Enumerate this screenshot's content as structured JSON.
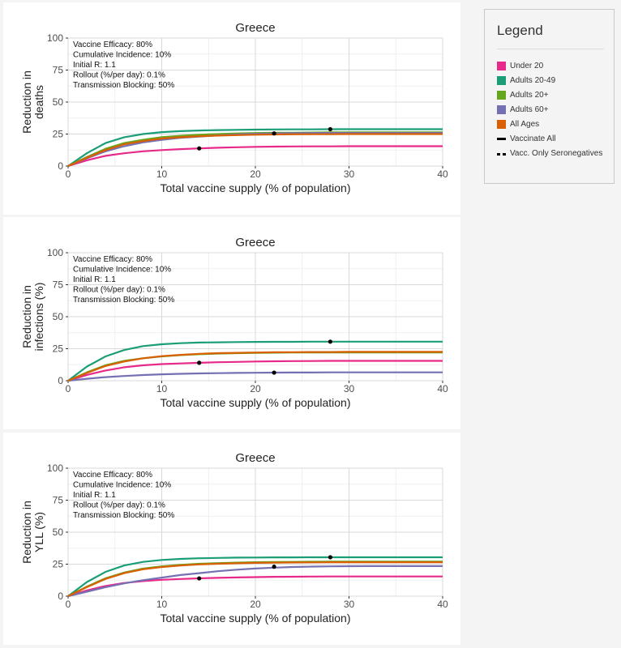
{
  "legend": {
    "title": "Legend",
    "items": [
      {
        "label": "Under 20",
        "color": "#e7298a",
        "kind": "swatch"
      },
      {
        "label": "Adults 20-49",
        "color": "#1b9e77",
        "kind": "swatch"
      },
      {
        "label": "Adults 20+",
        "color": "#66a61e",
        "kind": "swatch"
      },
      {
        "label": "Adults 60+",
        "color": "#7570b3",
        "kind": "swatch"
      },
      {
        "label": "All Ages",
        "color": "#d95f02",
        "kind": "swatch"
      },
      {
        "label": "Vaccinate All",
        "color": "#000000",
        "kind": "line"
      },
      {
        "label": "Vacc. Only Seronegatives",
        "color": "#000000",
        "kind": "dots"
      }
    ]
  },
  "chart_data": [
    {
      "type": "line",
      "title": "Greece",
      "xlabel": "Total vaccine supply (% of population)",
      "ylabel": [
        "Reduction in",
        "deaths"
      ],
      "xlim": [
        0,
        40
      ],
      "ylim": [
        0,
        100
      ],
      "x_ticks": [
        0,
        10,
        20,
        30,
        40
      ],
      "y_ticks": [
        0,
        25,
        50,
        75,
        100
      ],
      "annotations": [
        "Vaccine Efficacy: 80%",
        "Cumulative Incidence: 10%",
        "Initial R: 1.1",
        "Rollout (%/per day): 0.1%",
        "Transmission Blocking: 50%"
      ],
      "x": [
        0,
        2,
        4,
        6,
        8,
        10,
        12,
        14,
        16,
        18,
        20,
        22,
        24,
        26,
        28,
        30,
        32,
        34,
        36,
        38,
        40
      ],
      "series": [
        {
          "name": "Under 20",
          "color": "#e7298a",
          "values": [
            0,
            4.5,
            8,
            10,
            11.5,
            12.5,
            13.2,
            13.8,
            14.3,
            14.7,
            15,
            15.2,
            15.3,
            15.4,
            15.4,
            15.5,
            15.5,
            15.5,
            15.5,
            15.5,
            15.5
          ],
          "marker": [
            14,
            13.8
          ]
        },
        {
          "name": "Adults 20-49",
          "color": "#1b9e77",
          "values": [
            0,
            10,
            18,
            22.5,
            25,
            26.5,
            27.3,
            27.8,
            28.1,
            28.3,
            28.5,
            28.6,
            28.7,
            28.7,
            28.8,
            28.8,
            28.8,
            28.8,
            28.8,
            28.8,
            28.8
          ],
          "marker": [
            28,
            28.8
          ]
        },
        {
          "name": "Adults 20+",
          "color": "#66a61e",
          "values": [
            0,
            7,
            13.5,
            18,
            20.5,
            22.5,
            23.7,
            24.5,
            25,
            25.5,
            25.8,
            26,
            26.1,
            26.2,
            26.3,
            26.3,
            26.3,
            26.3,
            26.3,
            26.3,
            26.3
          ]
        },
        {
          "name": "Adults 60+",
          "color": "#7570b3",
          "values": [
            0,
            6,
            11.5,
            15.5,
            18.5,
            20.5,
            22,
            23,
            24,
            24.7,
            25.2,
            25.5,
            25.7,
            25.8,
            25.9,
            25.9,
            25.9,
            25.9,
            25.9,
            25.9,
            25.9
          ],
          "marker": [
            22,
            25.5
          ]
        },
        {
          "name": "All Ages",
          "color": "#d95f02",
          "values": [
            0,
            6.5,
            12.5,
            17,
            19.5,
            21.5,
            22.5,
            23.3,
            23.8,
            24.2,
            24.5,
            24.7,
            24.8,
            24.9,
            24.9,
            25,
            25,
            25,
            25,
            25,
            25
          ]
        }
      ]
    },
    {
      "type": "line",
      "title": "Greece",
      "xlabel": "Total vaccine supply (% of population)",
      "ylabel": [
        "Reduction in",
        "infections (%)"
      ],
      "xlim": [
        0,
        40
      ],
      "ylim": [
        0,
        100
      ],
      "x_ticks": [
        0,
        10,
        20,
        30,
        40
      ],
      "y_ticks": [
        0,
        25,
        50,
        75,
        100
      ],
      "annotations": [
        "Vaccine Efficacy: 80%",
        "Cumulative Incidence: 10%",
        "Initial R: 1.1",
        "Rollout (%/per day): 0.1%",
        "Transmission Blocking: 50%"
      ],
      "x": [
        0,
        2,
        4,
        6,
        8,
        10,
        12,
        14,
        16,
        18,
        20,
        22,
        24,
        26,
        28,
        30,
        32,
        34,
        36,
        38,
        40
      ],
      "series": [
        {
          "name": "Under 20",
          "color": "#e7298a",
          "values": [
            0,
            4.5,
            8,
            10.5,
            12,
            13,
            13.5,
            14,
            14.4,
            14.7,
            15,
            15.2,
            15.3,
            15.4,
            15.5,
            15.5,
            15.5,
            15.5,
            15.5,
            15.5,
            15.5
          ],
          "marker": [
            14,
            14
          ]
        },
        {
          "name": "Adults 20-49",
          "color": "#1b9e77",
          "values": [
            0,
            11,
            19,
            24,
            27,
            28.5,
            29.3,
            29.8,
            30,
            30.2,
            30.3,
            30.4,
            30.4,
            30.5,
            30.5,
            30.5,
            30.5,
            30.5,
            30.5,
            30.5,
            30.5
          ],
          "marker": [
            28,
            30.5
          ]
        },
        {
          "name": "Adults 20+",
          "color": "#66a61e",
          "values": [
            0,
            6.5,
            12,
            15.5,
            17.5,
            19,
            20,
            20.7,
            21.2,
            21.5,
            21.7,
            21.9,
            22,
            22,
            22.1,
            22.1,
            22.1,
            22.1,
            22.1,
            22.1,
            22.1
          ]
        },
        {
          "name": "Adults 60+",
          "color": "#7570b3",
          "values": [
            0,
            1.5,
            2.8,
            3.7,
            4.4,
            5,
            5.4,
            5.7,
            5.9,
            6.1,
            6.2,
            6.3,
            6.4,
            6.4,
            6.5,
            6.5,
            6.5,
            6.5,
            6.5,
            6.5,
            6.5
          ],
          "marker": [
            22,
            6.3
          ]
        },
        {
          "name": "All Ages",
          "color": "#d95f02",
          "values": [
            0,
            6,
            11.5,
            15,
            17.5,
            19.2,
            20.2,
            21,
            21.5,
            21.8,
            22,
            22.2,
            22.3,
            22.4,
            22.4,
            22.5,
            22.5,
            22.5,
            22.5,
            22.5,
            22.5
          ]
        }
      ]
    },
    {
      "type": "line",
      "title": "Greece",
      "xlabel": "Total vaccine supply (% of population)",
      "ylabel": [
        "Reduction in",
        "YLL (%)"
      ],
      "xlim": [
        0,
        40
      ],
      "ylim": [
        0,
        100
      ],
      "x_ticks": [
        0,
        10,
        20,
        30,
        40
      ],
      "y_ticks": [
        0,
        25,
        50,
        75,
        100
      ],
      "annotations": [
        "Vaccine Efficacy: 80%",
        "Cumulative Incidence: 10%",
        "Initial R: 1.1",
        "Rollout (%/per day): 0.1%",
        "Transmission Blocking: 50%"
      ],
      "x": [
        0,
        2,
        4,
        6,
        8,
        10,
        12,
        14,
        16,
        18,
        20,
        22,
        24,
        26,
        28,
        30,
        32,
        34,
        36,
        38,
        40
      ],
      "series": [
        {
          "name": "Under 20",
          "color": "#e7298a",
          "values": [
            0,
            4.5,
            8,
            10.3,
            11.8,
            12.8,
            13.4,
            13.9,
            14.3,
            14.6,
            14.9,
            15.1,
            15.2,
            15.3,
            15.4,
            15.4,
            15.4,
            15.4,
            15.4,
            15.4,
            15.4
          ],
          "marker": [
            14,
            13.9
          ]
        },
        {
          "name": "Adults 20-49",
          "color": "#1b9e77",
          "values": [
            0,
            11,
            19,
            24,
            26.8,
            28.3,
            29.1,
            29.6,
            29.9,
            30.1,
            30.2,
            30.3,
            30.3,
            30.4,
            30.4,
            30.4,
            30.4,
            30.4,
            30.4,
            30.4,
            30.4
          ],
          "marker": [
            28,
            30.4
          ]
        },
        {
          "name": "Adults 20+",
          "color": "#66a61e",
          "values": [
            0,
            7.5,
            14,
            18.5,
            21.5,
            23.3,
            24.5,
            25.3,
            25.8,
            26.2,
            26.5,
            26.7,
            26.8,
            26.9,
            27,
            27,
            27,
            27,
            27,
            27,
            27
          ]
        },
        {
          "name": "Adults 60+",
          "color": "#7570b3",
          "values": [
            0,
            3.5,
            7,
            10,
            12.5,
            14.5,
            16.5,
            18,
            19.5,
            20.7,
            21.6,
            22.3,
            22.8,
            23.1,
            23.3,
            23.4,
            23.5,
            23.5,
            23.5,
            23.5,
            23.5
          ],
          "marker": [
            22,
            23
          ]
        },
        {
          "name": "All Ages",
          "color": "#d95f02",
          "values": [
            0,
            7,
            13.5,
            18,
            21,
            22.8,
            24,
            24.8,
            25.3,
            25.7,
            26,
            26.2,
            26.3,
            26.4,
            26.5,
            26.5,
            26.5,
            26.5,
            26.5,
            26.5,
            26.5
          ]
        }
      ]
    }
  ]
}
